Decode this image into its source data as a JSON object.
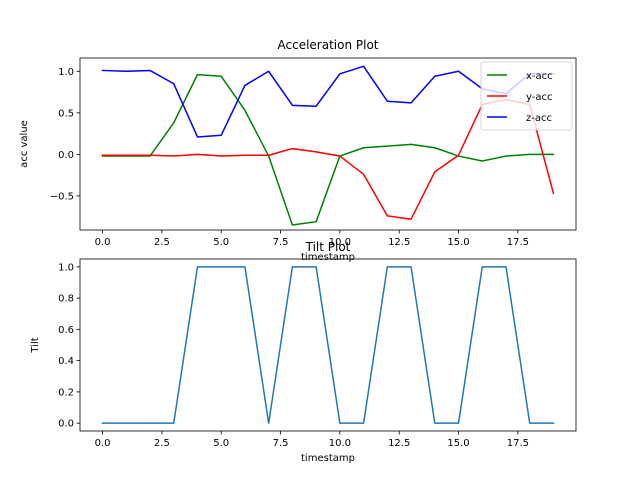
{
  "chart_data": [
    {
      "type": "line",
      "title": "Acceleration Plot",
      "xlabel": "timestamp",
      "ylabel": "acc value",
      "xlim": [
        -0.95,
        19.95
      ],
      "ylim": [
        -0.91,
        1.16
      ],
      "xticks": [
        0.0,
        2.5,
        5.0,
        7.5,
        10.0,
        12.5,
        15.0,
        17.5
      ],
      "xtick_labels": [
        "0.0",
        "2.5",
        "5.0",
        "7.5",
        "10.0",
        "12.5",
        "15.0",
        "17.5"
      ],
      "yticks": [
        -0.5,
        0.0,
        0.5,
        1.0
      ],
      "ytick_labels": [
        "−0.5",
        "0.0",
        "0.5",
        "1.0"
      ],
      "grid": false,
      "legend": "top-right",
      "x": [
        0,
        1,
        2,
        3,
        4,
        5,
        6,
        7,
        8,
        9,
        10,
        11,
        12,
        13,
        14,
        15,
        16,
        17,
        18,
        19
      ],
      "series": [
        {
          "name": "x-acc",
          "color": "#008000",
          "values": [
            -0.02,
            -0.02,
            -0.02,
            0.38,
            0.96,
            0.94,
            0.53,
            -0.02,
            -0.85,
            -0.81,
            -0.02,
            0.08,
            0.1,
            0.12,
            0.08,
            -0.02,
            -0.08,
            -0.02,
            0.0,
            0.0
          ]
        },
        {
          "name": "y-acc",
          "color": "#ff0000",
          "values": [
            -0.01,
            -0.01,
            -0.01,
            -0.02,
            0.0,
            -0.02,
            -0.01,
            -0.01,
            0.07,
            0.03,
            -0.02,
            -0.24,
            -0.74,
            -0.78,
            -0.21,
            -0.01,
            0.6,
            0.66,
            0.6,
            -0.47
          ]
        },
        {
          "name": "z-acc",
          "color": "#0000ff",
          "values": [
            1.01,
            1.0,
            1.01,
            0.85,
            0.21,
            0.23,
            0.83,
            1.0,
            0.59,
            0.58,
            0.97,
            1.06,
            0.64,
            0.62,
            0.94,
            1.0,
            0.79,
            0.73,
            0.97,
            0.97
          ]
        }
      ]
    },
    {
      "type": "line",
      "title": "Tilt Plot",
      "xlabel": "timestamp",
      "ylabel": "Tilt",
      "xlim": [
        -0.95,
        19.95
      ],
      "ylim": [
        -0.05,
        1.05
      ],
      "xticks": [
        0.0,
        2.5,
        5.0,
        7.5,
        10.0,
        12.5,
        15.0,
        17.5
      ],
      "xtick_labels": [
        "0.0",
        "2.5",
        "5.0",
        "7.5",
        "10.0",
        "12.5",
        "15.0",
        "17.5"
      ],
      "yticks": [
        0.0,
        0.2,
        0.4,
        0.6,
        0.8,
        1.0
      ],
      "ytick_labels": [
        "0.0",
        "0.2",
        "0.4",
        "0.6",
        "0.8",
        "1.0"
      ],
      "grid": false,
      "x": [
        0,
        1,
        2,
        3,
        4,
        5,
        6,
        7,
        8,
        9,
        10,
        11,
        12,
        13,
        14,
        15,
        16,
        17,
        18,
        19
      ],
      "series": [
        {
          "color": "#1f77b4",
          "values": [
            0,
            0,
            0,
            0,
            1,
            1,
            1,
            0,
            1,
            1,
            0,
            0,
            1,
            1,
            0,
            0,
            1,
            1,
            0,
            0
          ]
        }
      ]
    }
  ]
}
